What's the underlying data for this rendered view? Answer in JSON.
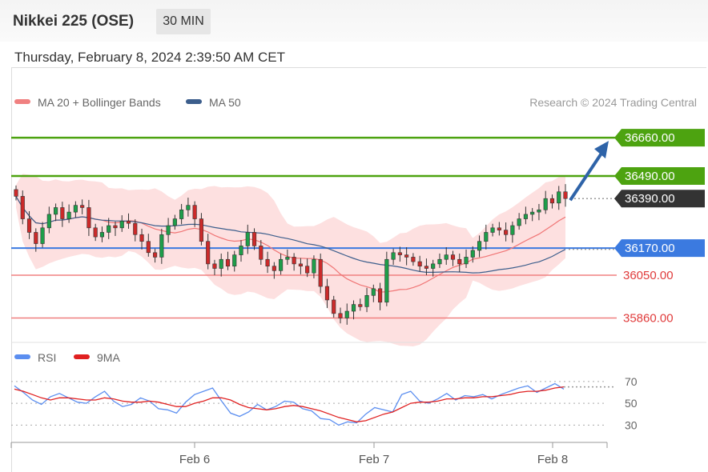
{
  "header": {
    "title": "Nikkei 225 (OSE)",
    "timeframe": "30 MIN"
  },
  "datetime": "Thursday, February 8, 2024 2:39:50 AM CET",
  "legend": {
    "bb_label": "MA 20 + Bollinger Bands",
    "ma50_label": "MA 50",
    "credit": "Research © 2024 Trading Central"
  },
  "rsi_legend": {
    "rsi_label": "RSI",
    "ma_label": "9MA"
  },
  "colors": {
    "green": "#4da310",
    "blue": "#3b7ae0",
    "red": "#f08080",
    "dark": "#333333",
    "arrow": "#2e63a8",
    "bb_fill": "#fde0e0",
    "ma20": "#f07575",
    "ma50": "#3c5e8c",
    "candle_up": "#1e9e4a",
    "candle_down": "#cc2a2a",
    "rsi": "#5b8ef0",
    "rsi_ma": "#e02020"
  },
  "chart_data": {
    "type": "candlestick",
    "y_range": [
      35780,
      36760
    ],
    "x_ticks": [
      "Feb 6",
      "Feb 7",
      "Feb 8"
    ],
    "levels": [
      {
        "value": 36660.0,
        "label": "36660.00",
        "style": "green-box"
      },
      {
        "value": 36490.0,
        "label": "36490.00",
        "style": "green-box"
      },
      {
        "value": 36390.0,
        "label": "36390.00",
        "style": "dark-box"
      },
      {
        "value": 36170.0,
        "label": "36170.00",
        "style": "blue-box"
      },
      {
        "value": 36050.0,
        "label": "36050.00",
        "style": "red-text"
      },
      {
        "value": 35860.0,
        "label": "35860.00",
        "style": "red-text"
      }
    ],
    "prices": [
      36400,
      36300,
      36240,
      36190,
      36260,
      36320,
      36350,
      36300,
      36330,
      36360,
      36350,
      36260,
      36220,
      36240,
      36270,
      36260,
      36290,
      36280,
      36230,
      36200,
      36150,
      36130,
      36230,
      36270,
      36300,
      36340,
      36360,
      36300,
      36200,
      36100,
      36080,
      36120,
      36090,
      36140,
      36180,
      36240,
      36180,
      36120,
      36090,
      36070,
      36120,
      36130,
      36100,
      36090,
      36060,
      36120,
      36000,
      35940,
      35880,
      35860,
      35890,
      35920,
      35910,
      35960,
      35990,
      35930,
      36120,
      36150,
      36140,
      36130,
      36110,
      36090,
      36080,
      36100,
      36120,
      36140,
      36120,
      36100,
      36130,
      36160,
      36200,
      36240,
      36260,
      36250,
      36230,
      36270,
      36300,
      36320,
      36330,
      36340,
      36390,
      36370,
      36420,
      36390
    ],
    "rsi": {
      "y_range": [
        20,
        75
      ],
      "ticks": [
        70,
        50,
        30
      ],
      "rsi_values": [
        66,
        60,
        53,
        49,
        56,
        59,
        55,
        51,
        50,
        56,
        61,
        52,
        47,
        49,
        55,
        52,
        45,
        44,
        41,
        51,
        58,
        61,
        64,
        52,
        41,
        38,
        42,
        49,
        44,
        47,
        52,
        51,
        45,
        43,
        36,
        35,
        30,
        33,
        32,
        40,
        46,
        44,
        42,
        58,
        61,
        52,
        50,
        54,
        59,
        53,
        57,
        56,
        58,
        54,
        58,
        61,
        64,
        66,
        60,
        64,
        68,
        63
      ],
      "ma_values": [
        63,
        61,
        58,
        55,
        53,
        55,
        55,
        54,
        53,
        53,
        55,
        54,
        52,
        51,
        51,
        52,
        51,
        49,
        47,
        47,
        50,
        52,
        55,
        55,
        53,
        49,
        46,
        45,
        44,
        45,
        47,
        48,
        47,
        45,
        43,
        40,
        37,
        35,
        33,
        34,
        37,
        40,
        42,
        46,
        50,
        51,
        51,
        52,
        54,
        54,
        55,
        55,
        56,
        56,
        57,
        58,
        60,
        61,
        61,
        62,
        64,
        65
      ]
    }
  }
}
